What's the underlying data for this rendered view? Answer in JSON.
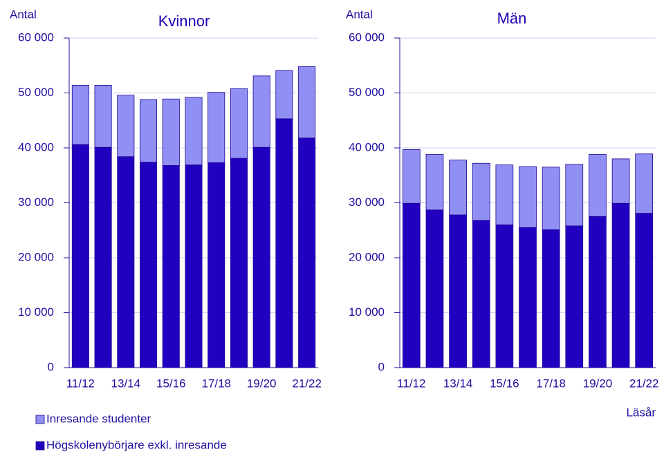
{
  "chart_data": [
    {
      "type": "bar",
      "title": "Kvinnor",
      "ylabel": "Antal",
      "categories": [
        "11/12",
        null,
        "13/14",
        null,
        "15/16",
        null,
        "17/18",
        null,
        "19/20",
        null,
        "21/22"
      ],
      "series": [
        {
          "name": "Högskolenybörjare exkl. inresande",
          "color": "#2200c0",
          "values": [
            40600,
            40100,
            38400,
            37400,
            36800,
            36900,
            37300,
            38100,
            40100,
            45300,
            41800
          ]
        },
        {
          "name": "Inresande studenter",
          "color": "#9090f4",
          "values": [
            10800,
            11300,
            11200,
            11400,
            12100,
            12300,
            12800,
            12700,
            13000,
            8800,
            13000
          ]
        }
      ],
      "ylim": [
        0,
        60000
      ],
      "yticks": [
        0,
        {
          "value": 10000,
          "label": "10 000"
        },
        {
          "value": 20000,
          "label": "20 000"
        },
        {
          "value": 30000,
          "label": "30 000"
        },
        {
          "value": 40000,
          "label": "40 000"
        },
        {
          "value": 50000,
          "label": "50 000"
        },
        {
          "value": 60000,
          "label": "60 000"
        }
      ],
      "grid": true,
      "stacked": true
    },
    {
      "type": "bar",
      "title": "Män",
      "ylabel": "Antal",
      "xlabel": "Läsår",
      "categories": [
        "11/12",
        null,
        "13/14",
        null,
        "15/16",
        null,
        "17/18",
        null,
        "19/20",
        null,
        "21/22"
      ],
      "series": [
        {
          "color": "#2200c0",
          "values": [
            29900,
            28700,
            27800,
            26800,
            26000,
            25500,
            25100,
            25800,
            27500,
            29900,
            28100
          ]
        },
        {
          "color": "#9090f4",
          "values": [
            9800,
            10100,
            10000,
            10400,
            10900,
            11100,
            11400,
            11200,
            11300,
            8100,
            10800
          ]
        }
      ],
      "ylim": [
        0,
        60000
      ],
      "yticks": [
        0,
        {
          "value": 10000,
          "label": "10 000"
        },
        {
          "value": 20000,
          "label": "20 000"
        },
        {
          "value": 30000,
          "label": "30 000"
        },
        {
          "value": 40000,
          "label": "40 000"
        },
        {
          "value": 50000,
          "label": "50 000"
        },
        {
          "value": 60000,
          "label": "60 000"
        }
      ],
      "grid": true,
      "stacked": true
    }
  ]
}
